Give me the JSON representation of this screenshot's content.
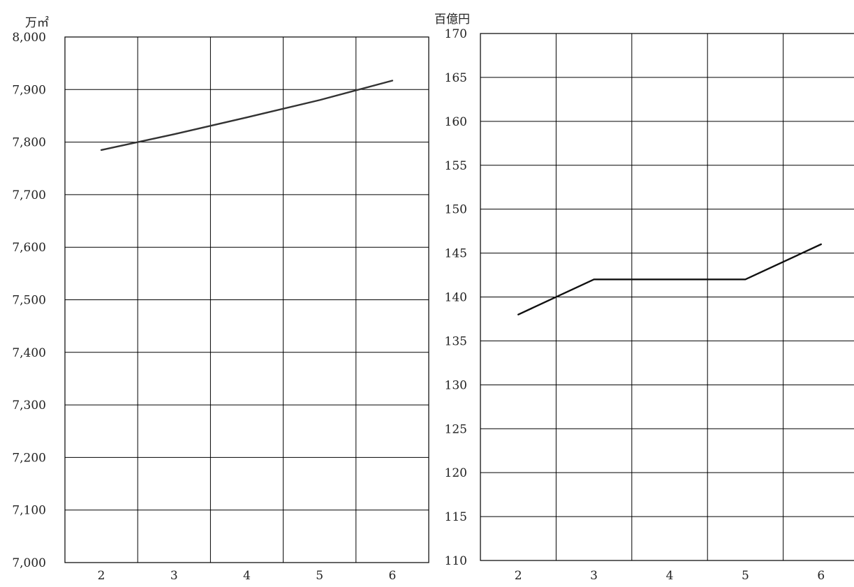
{
  "chart_data": [
    {
      "type": "line",
      "title": "",
      "xlabel": "",
      "ylabel": "万㎡",
      "x": [
        "2",
        "3",
        "4",
        "5",
        "6"
      ],
      "ylim": [
        7000,
        8000
      ],
      "yticks": [
        "7,000",
        "7,100",
        "7,200",
        "7,300",
        "7,400",
        "7,500",
        "7,600",
        "7,700",
        "7,800",
        "7,900",
        "8,000"
      ],
      "grid": true,
      "series": [
        {
          "values": [
            7785,
            7815,
            7847,
            7880,
            7917
          ],
          "color": "#333333"
        }
      ]
    },
    {
      "type": "line",
      "title": "",
      "xlabel": "",
      "ylabel": "百億円",
      "x": [
        "2",
        "3",
        "4",
        "5",
        "6"
      ],
      "ylim": [
        110,
        170
      ],
      "yticks": [
        "110",
        "115",
        "120",
        "125",
        "130",
        "135",
        "140",
        "145",
        "150",
        "155",
        "160",
        "165",
        "170"
      ],
      "grid": true,
      "series": [
        {
          "values": [
            138,
            142,
            142,
            142,
            146
          ],
          "color": "#111111"
        }
      ]
    }
  ]
}
